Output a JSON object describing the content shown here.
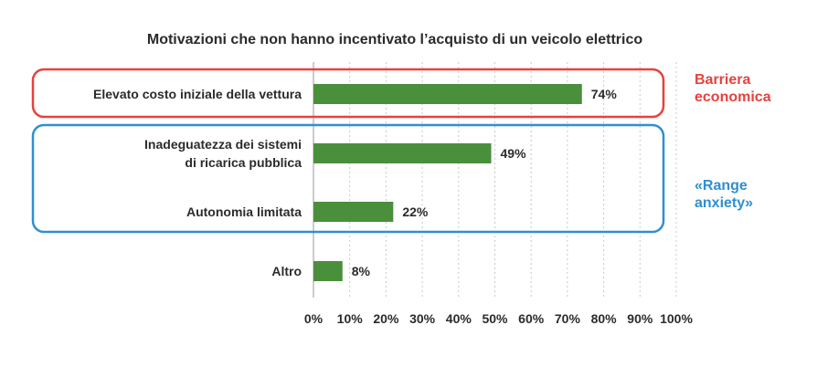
{
  "chart_data": {
    "type": "bar",
    "orientation": "horizontal",
    "title": "Motivazioni che non hanno incentivato l’acquisto di un veicolo elettrico",
    "categories": [
      [
        "Elevato costo iniziale della vettura"
      ],
      [
        "Inadeguatezza dei sistemi",
        "di ricarica pubblica"
      ],
      [
        "Autonomia limitata"
      ],
      [
        "Altro"
      ]
    ],
    "values": [
      74,
      49,
      22,
      8
    ],
    "value_labels": [
      "74%",
      "49%",
      "22%",
      "8%"
    ],
    "xlim": [
      0,
      100
    ],
    "x_ticks": [
      "0%",
      "10%",
      "20%",
      "30%",
      "40%",
      "50%",
      "60%",
      "70%",
      "80%",
      "90%",
      "100%"
    ],
    "grid": "vertical dashed",
    "bar_color": "#4a8f3c",
    "groups": [
      {
        "label": [
          "Barriera",
          "economica"
        ],
        "color": "#e8413c",
        "categories": [
          0
        ]
      },
      {
        "label": [
          "«Range",
          "anxiety»"
        ],
        "color": "#2f8fd0",
        "categories": [
          1,
          2
        ]
      }
    ]
  }
}
